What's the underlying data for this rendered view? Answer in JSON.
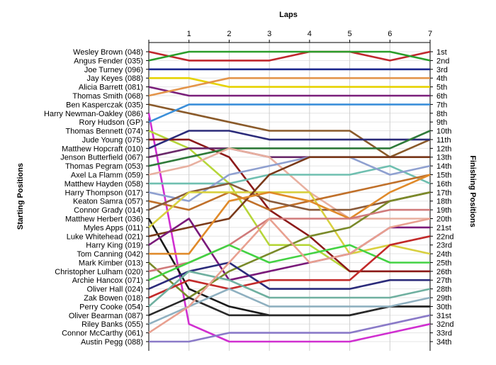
{
  "chart_data": {
    "type": "line",
    "title": "",
    "x_title": "Laps",
    "left_title": "Starting Positions",
    "right_title": "Finishing Positions",
    "x": [
      0,
      1,
      2,
      3,
      4,
      5,
      6,
      7
    ],
    "x_tick_labels": [
      "1",
      "2",
      "3",
      "4",
      "5",
      "6",
      "7"
    ],
    "xlim": [
      0,
      7
    ],
    "ylim": [
      1,
      34
    ],
    "y_inverted": true,
    "grid": true,
    "drivers": [
      "Wesley Brown (048)",
      "Angus Fender (035)",
      "Joe Turney (096)",
      "Jay Keyes (088)",
      "Alicia Barrett (081)",
      "Thomas Smith (068)",
      "Ben Kasperczak (035)",
      "Harry Newman-Oakley (086)",
      "Rory Hudson (GP)",
      "Thomas Bennett (074)",
      "Jude Young (075)",
      "Matthew Hopcraft (010)",
      "Jenson Butterfield (067)",
      "Thomas Pegram (053)",
      "Axel La Flamm (059)",
      "Matthew Hayden (058)",
      "Harry Thompson (017)",
      "Keaton Samra (057)",
      "Connor Grady (014)",
      "Matthew Herbert (036)",
      "Myles Apps (011)",
      "Luke Whitehead (021)",
      "Harry King (019)",
      "Tom Canning (042)",
      "Mark Kimber (013)",
      "Christopher Lulham (020)",
      "Archie Hancox (071)",
      "Oliver Hall (024)",
      "Zak Bowen (018)",
      "Perry Cooke (054)",
      "Oliver Bearman (087)",
      "Riley Banks (055)",
      "Connor McCarthy (061)",
      "Austin Pegg (088)"
    ],
    "finishing_labels": [
      "1st",
      "2nd",
      "3rd",
      "4th",
      "5th",
      "6th",
      "7th",
      "8th",
      "9th",
      "10th",
      "11th",
      "12th",
      "13th",
      "14th",
      "15th",
      "16th",
      "17th",
      "18th",
      "19th",
      "20th",
      "21st",
      "22nd",
      "23rd",
      "24th",
      "25th",
      "26th",
      "27th",
      "28th",
      "29th",
      "30th",
      "31st",
      "32nd",
      "33rd",
      "34th"
    ],
    "series": [
      {
        "color": "#c0272d",
        "values": [
          1,
          2,
          2,
          2,
          1,
          1,
          2,
          1
        ]
      },
      {
        "color": "#2a9d2a",
        "values": [
          2,
          1,
          1,
          1,
          1,
          1,
          1,
          2
        ]
      },
      {
        "color": "#1f2a8f",
        "values": [
          3,
          3,
          3,
          3,
          3,
          3,
          3,
          3
        ]
      },
      {
        "color": "#e6d200",
        "values": [
          4,
          4,
          5,
          5,
          5,
          5,
          5,
          5
        ]
      },
      {
        "color": "#7a1f7a",
        "values": [
          5,
          6,
          6,
          6,
          6,
          6,
          6,
          6
        ]
      },
      {
        "color": "#e3944a",
        "values": [
          6,
          5,
          4,
          4,
          4,
          4,
          4,
          4
        ]
      },
      {
        "color": "#8a5a2a",
        "values": [
          7,
          8,
          9,
          10,
          10,
          10,
          13,
          11
        ]
      },
      {
        "color": "#d02fd0",
        "values": [
          8,
          32,
          34,
          34,
          34,
          34,
          33,
          32
        ]
      },
      {
        "color": "#3b8fd9",
        "values": [
          9,
          7,
          7,
          7,
          7,
          7,
          7,
          7
        ]
      },
      {
        "color": "#b6d63a",
        "values": [
          10,
          12,
          16,
          23,
          23,
          26,
          26,
          26
        ]
      },
      {
        "color": "#8c1a1a",
        "values": [
          11,
          11,
          13,
          19,
          22,
          26,
          26,
          26
        ]
      },
      {
        "color": "#2b2b7a",
        "values": [
          12,
          10,
          10,
          11,
          11,
          11,
          11,
          11
        ]
      },
      {
        "color": "#6a2a6a",
        "values": [
          13,
          12,
          12,
          13,
          13,
          13,
          13,
          13
        ]
      },
      {
        "color": "#2f7a3a",
        "values": [
          14,
          13,
          12,
          12,
          12,
          12,
          12,
          10
        ]
      },
      {
        "color": "#e8b0a0",
        "values": [
          15,
          14,
          12,
          13,
          17,
          20,
          20,
          20
        ]
      },
      {
        "color": "#6fbfb0",
        "values": [
          16,
          16,
          16,
          15,
          15,
          15,
          14,
          16
        ]
      },
      {
        "color": "#8fa0d0",
        "values": [
          17,
          18,
          15,
          14,
          13,
          13,
          15,
          14
        ]
      },
      {
        "color": "#c0702a",
        "values": [
          18,
          19,
          17,
          19,
          18,
          17,
          16,
          15
        ]
      },
      {
        "color": "#8a5a3a",
        "values": [
          19,
          17,
          16,
          18,
          19,
          19,
          18,
          17
        ]
      },
      {
        "color": "#1a1a1a",
        "values": [
          20,
          28,
          30,
          31,
          31,
          31,
          30,
          30
        ]
      },
      {
        "color": "#d8d040",
        "values": [
          21,
          17,
          17,
          17,
          17,
          24,
          23,
          24
        ]
      },
      {
        "color": "#7a3a1a",
        "values": [
          22,
          21,
          20,
          15,
          13,
          13,
          13,
          13
        ]
      },
      {
        "color": "#7a1a7a",
        "values": [
          23,
          20,
          27,
          26,
          25,
          24,
          21,
          21
        ]
      },
      {
        "color": "#e08a2a",
        "values": [
          24,
          24,
          18,
          17,
          18,
          20,
          17,
          15
        ]
      },
      {
        "color": "#7a8a2a",
        "values": [
          25,
          29,
          26,
          24,
          22,
          21,
          18,
          17
        ]
      },
      {
        "color": "#d07a7a",
        "values": [
          26,
          25,
          23,
          20,
          20,
          20,
          19,
          19
        ]
      },
      {
        "color": "#44d244",
        "values": [
          27,
          25,
          23,
          25,
          24,
          23,
          25,
          25
        ]
      },
      {
        "color": "#2b2b7a",
        "values": [
          28,
          26,
          25,
          28,
          28,
          28,
          27,
          27
        ]
      },
      {
        "color": "#c22a2a",
        "values": [
          29,
          27,
          28,
          27,
          27,
          27,
          23,
          22
        ]
      },
      {
        "color": "#6fb0a0",
        "values": [
          30,
          26,
          27,
          29,
          29,
          29,
          29,
          28
        ]
      },
      {
        "color": "#2a2a2a",
        "values": [
          31,
          29,
          31,
          31,
          31,
          31,
          30,
          30
        ]
      },
      {
        "color": "#8fb0c0",
        "values": [
          32,
          30,
          28,
          30,
          30,
          30,
          30,
          29
        ]
      },
      {
        "color": "#e8a090",
        "values": [
          33,
          30,
          25,
          20,
          25,
          24,
          21,
          20
        ]
      },
      {
        "color": "#8a7ac8",
        "values": [
          34,
          34,
          33,
          33,
          33,
          33,
          32,
          31
        ]
      }
    ]
  }
}
